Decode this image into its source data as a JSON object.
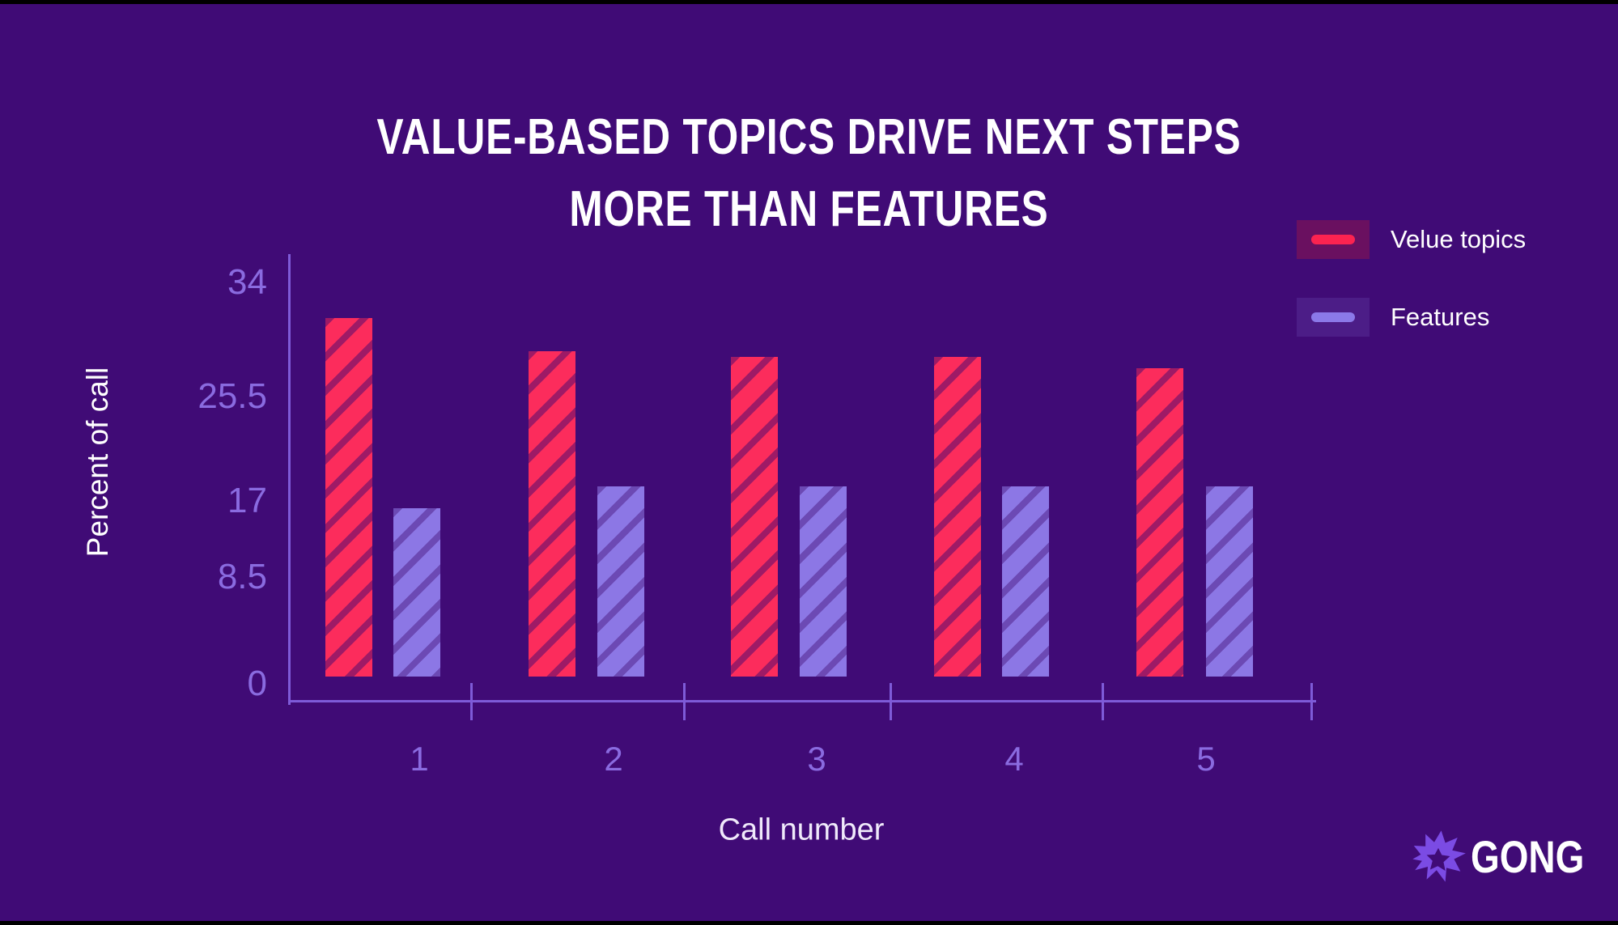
{
  "page": {
    "background": "#400B76",
    "top_strip_color": "#000000",
    "bottom_strip_color": "#000000"
  },
  "title": {
    "line1": "VALUE-BASED TOPICS DRIVE NEXT STEPS",
    "line2": "MORE THAN FEATURES"
  },
  "legend": {
    "position": "top-right",
    "items": [
      {
        "label": "Velue topics",
        "swatch_bg": "#6A1060",
        "dash_color": "#FB2350"
      },
      {
        "label": "Features",
        "swatch_bg": "#4C1D87",
        "dash_color": "#8B79E8"
      }
    ]
  },
  "axes": {
    "ylabel": "Percent of call",
    "xlabel": "Call number",
    "yticks": [
      "34",
      "25.5",
      "17",
      "8.5",
      "0"
    ],
    "xticks": [
      "1",
      "2",
      "3",
      "4",
      "5"
    ]
  },
  "branding": {
    "logo_text": "GONG",
    "logo_icon": "gong-starburst-icon",
    "logo_color": "#7B4BE4"
  },
  "colors": {
    "background": "#400B76",
    "title_text": "#FFFFFF",
    "axis_line": "#7E5BD8",
    "tick_label": "#8A6BE0",
    "value_topics_bar": "#FC2C5C",
    "value_topics_hatch": "#A11B68",
    "features_bar": "#8C77E5",
    "features_hatch": "#6B45B2",
    "legend_value_swatch_bg": "#6A1060",
    "legend_value_dash": "#FB2350",
    "legend_features_swatch_bg": "#4C1D87",
    "legend_features_dash": "#8B79E8",
    "logo": "#7B4BE4"
  },
  "chart_data": {
    "type": "bar",
    "title": "VALUE-BASED TOPICS DRIVE NEXT STEPS MORE THAN FEATURES",
    "categories": [
      "1",
      "2",
      "3",
      "4",
      "5"
    ],
    "series": [
      {
        "name": "Velue topics",
        "color": "#FC2C5C",
        "hatch": "diagonal",
        "values": [
          32,
          29,
          28.5,
          28.5,
          27.5
        ]
      },
      {
        "name": "Features",
        "color": "#8C77E5",
        "hatch": "diagonal",
        "values": [
          15,
          17,
          17,
          17,
          17
        ]
      }
    ],
    "xlabel": "Call number",
    "ylabel": "Percent of call",
    "ylim": [
      0,
      34
    ],
    "yticks": [
      0,
      8.5,
      17,
      25.5,
      34
    ],
    "grid": false,
    "legend_position": "top-right",
    "bar_style": "diagonal-hatch"
  }
}
